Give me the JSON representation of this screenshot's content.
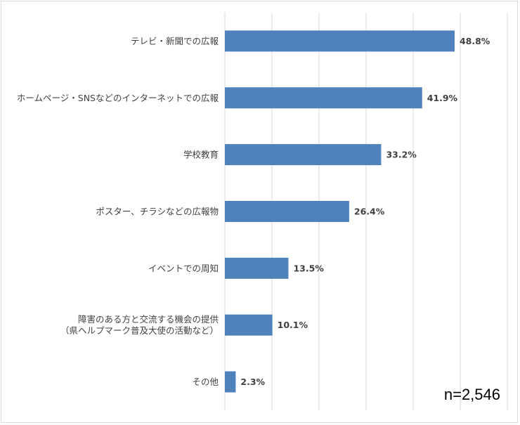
{
  "chart_data": {
    "type": "bar",
    "orientation": "horizontal",
    "categories": [
      [
        "テレビ・新聞での広報"
      ],
      [
        "ホームページ・SNSなどのインターネットでの広報"
      ],
      [
        "学校教育"
      ],
      [
        "ポスター、チラシなどの広報物"
      ],
      [
        "イベントでの周知"
      ],
      [
        "障害のある方と交流する機会の提供",
        "（県ヘルプマーク普及大使の活動など）"
      ],
      [
        "その他"
      ]
    ],
    "values": [
      48.8,
      41.9,
      33.2,
      26.4,
      13.5,
      10.1,
      2.3
    ],
    "value_labels": [
      "48.8%",
      "41.9%",
      "33.2%",
      "26.4%",
      "13.5%",
      "10.1%",
      "2.3%"
    ],
    "xlim": [
      0,
      60
    ],
    "grid": true,
    "bar_color": "#4f81bd"
  },
  "sample_size": "n=2,546"
}
